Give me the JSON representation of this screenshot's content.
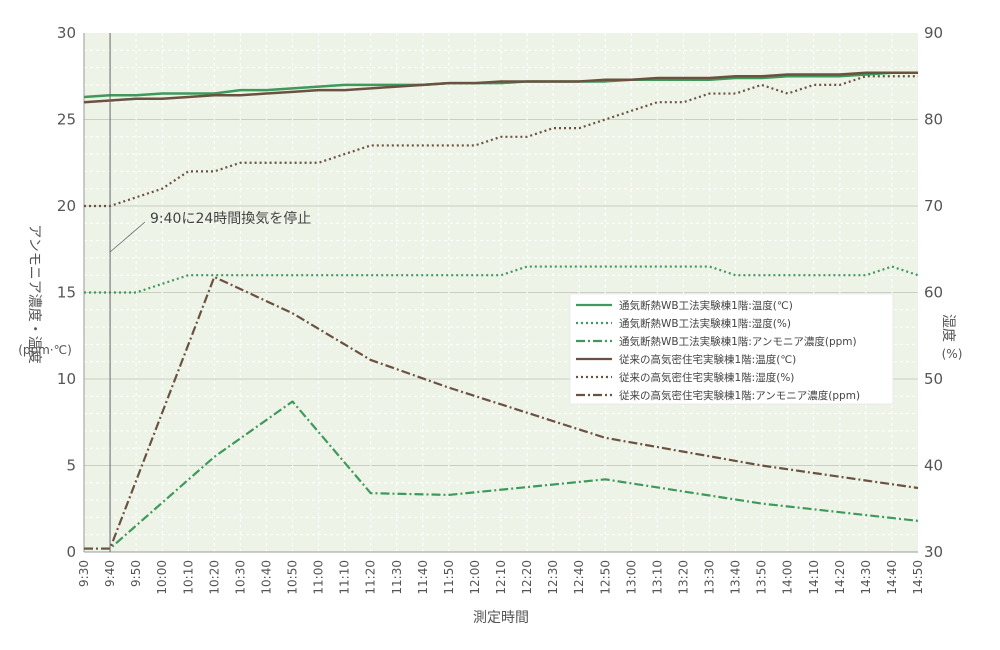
{
  "chart_data": {
    "type": "line",
    "title": "",
    "xlabel": "測定時間",
    "ylabel_left": "アンモニア濃度・温度",
    "ylabel_left_unit": "(ppm·℃)",
    "ylabel_right": "湿度",
    "ylabel_right_unit": "(%)",
    "ylim_left": [
      0,
      30
    ],
    "ylim_right": [
      30,
      90
    ],
    "yticks_left": [
      "0",
      "5",
      "10",
      "15",
      "20",
      "25",
      "30"
    ],
    "yticks_right": [
      "30",
      "40",
      "50",
      "60",
      "70",
      "80",
      "90"
    ],
    "grid": true,
    "legend_position": "right",
    "annotation": "9:40に24時間換気を停止",
    "annotation_x": "9:40",
    "x": [
      "9:30",
      "9:40",
      "9:50",
      "10:00",
      "10:10",
      "10:20",
      "10:30",
      "10:40",
      "10:50",
      "11:00",
      "11:10",
      "11:20",
      "11:30",
      "11:40",
      "11:50",
      "12:00",
      "12:10",
      "12:20",
      "12:30",
      "12:40",
      "12:50",
      "13:00",
      "13:10",
      "13:20",
      "13:30",
      "13:40",
      "13:50",
      "14:00",
      "14:10",
      "14:20",
      "14:30",
      "14:40",
      "14:50"
    ],
    "series": [
      {
        "name": "通気断熱WB工法実験棟1階:温度(℃)",
        "axis": "left",
        "style": "solid",
        "color": "#3d9a5a",
        "values": [
          26.3,
          26.4,
          26.4,
          26.5,
          26.5,
          26.5,
          26.7,
          26.7,
          26.8,
          26.9,
          27.0,
          27.0,
          27.0,
          27.0,
          27.1,
          27.1,
          27.1,
          27.2,
          27.2,
          27.2,
          27.2,
          27.3,
          27.3,
          27.3,
          27.3,
          27.4,
          27.4,
          27.5,
          27.5,
          27.5,
          27.6,
          27.7,
          27.7
        ]
      },
      {
        "name": "通気断熱WB工法実験棟1階:湿度(%)",
        "axis": "right",
        "style": "dotted",
        "color": "#3d9a5a",
        "values": [
          60,
          60,
          60,
          61,
          62,
          62,
          62,
          62,
          62,
          62,
          62,
          62,
          62,
          62,
          62,
          62,
          62,
          63,
          63,
          63,
          63,
          63,
          63,
          63,
          63,
          62,
          62,
          62,
          62,
          62,
          62,
          63,
          62
        ]
      },
      {
        "name": "通気断熱WB工法実験棟1階:アンモニア濃度(ppm)",
        "axis": "left",
        "style": "dashdot",
        "color": "#3d9a5a",
        "values": [
          0.2,
          0.2,
          null,
          null,
          null,
          5.5,
          null,
          null,
          8.7,
          null,
          null,
          3.4,
          null,
          null,
          3.3,
          null,
          null,
          null,
          null,
          null,
          4.2,
          null,
          null,
          null,
          null,
          null,
          2.8,
          null,
          null,
          null,
          null,
          null,
          1.8
        ]
      },
      {
        "name": "従来の高気密住宅実験棟1階:温度(℃)",
        "axis": "left",
        "style": "solid",
        "color": "#6b5240",
        "values": [
          26.0,
          26.1,
          26.2,
          26.2,
          26.3,
          26.4,
          26.4,
          26.5,
          26.6,
          26.7,
          26.7,
          26.8,
          26.9,
          27.0,
          27.1,
          27.1,
          27.2,
          27.2,
          27.2,
          27.2,
          27.3,
          27.3,
          27.4,
          27.4,
          27.4,
          27.5,
          27.5,
          27.6,
          27.6,
          27.6,
          27.7,
          27.7,
          27.7
        ]
      },
      {
        "name": "従来の高気密住宅実験棟1階:湿度(%)",
        "axis": "right",
        "style": "dotted",
        "color": "#6b5240",
        "values": [
          70,
          70,
          71,
          72,
          74,
          74,
          75,
          75,
          75,
          75,
          76,
          77,
          77,
          77,
          77,
          77,
          78,
          78,
          79,
          79,
          80,
          81,
          82,
          82,
          83,
          83,
          84,
          83,
          84,
          84,
          85,
          85,
          85
        ]
      },
      {
        "name": "従来の高気密住宅実験棟1階:アンモニア濃度(ppm)",
        "axis": "left",
        "style": "dashdot",
        "color": "#6b5240",
        "values": [
          0.2,
          0.2,
          null,
          null,
          null,
          15.9,
          null,
          null,
          13.8,
          null,
          null,
          11.1,
          null,
          null,
          9.5,
          null,
          null,
          null,
          null,
          null,
          6.6,
          null,
          null,
          null,
          null,
          null,
          5.0,
          null,
          null,
          null,
          null,
          null,
          3.7
        ]
      }
    ]
  }
}
